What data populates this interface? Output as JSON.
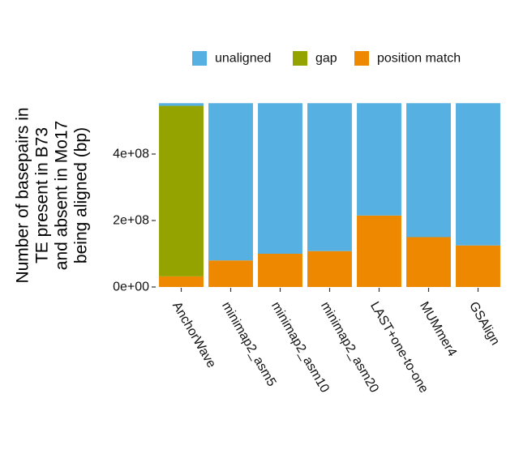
{
  "chart_data": {
    "type": "bar",
    "stacked": true,
    "title": "",
    "xlabel": "",
    "ylabel": "Number of basepairs in TE present in B73 and absent in Mo17 being aligned (bp)",
    "ylabel_lines": [
      "Number of basepairs in",
      "TE present in B73",
      "and absent in Mo17",
      "being aligned (bp)"
    ],
    "ylim": [
      0,
      580000000
    ],
    "yticks": [
      0,
      200000000,
      400000000
    ],
    "ytick_labels": [
      "0e+00",
      "2e+08",
      "4e+08"
    ],
    "categories": [
      "AnchorWave",
      "minimap2_asm5",
      "minimap2_asm10",
      "minimap2_asm20",
      "LAST+one-to-one",
      "MUMmer4",
      "GSAlign"
    ],
    "series": [
      {
        "name": "position match",
        "color": "#EE8800",
        "values": [
          32000000,
          80000000,
          100000000,
          108000000,
          215000000,
          150000000,
          125000000
        ]
      },
      {
        "name": "gap",
        "color": "#95A300",
        "values": [
          513000000,
          0,
          0,
          0,
          0,
          0,
          0
        ]
      },
      {
        "name": "unaligned",
        "color": "#56B0E1",
        "values": [
          8000000,
          473000000,
          453000000,
          445000000,
          338000000,
          403000000,
          428000000
        ]
      }
    ],
    "legend": {
      "position": "top",
      "items": [
        {
          "name": "unaligned",
          "color": "#56B0E1"
        },
        {
          "name": "gap",
          "color": "#95A300"
        },
        {
          "name": "position match",
          "color": "#EE8800"
        }
      ]
    },
    "grid": false
  }
}
